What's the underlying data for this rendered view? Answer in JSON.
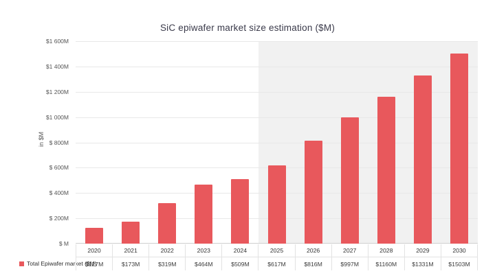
{
  "chart_data": {
    "type": "bar",
    "title": "SiC epiwafer market size estimation ($M)",
    "ylabel": "in $M",
    "categories": [
      "2020",
      "2021",
      "2022",
      "2023",
      "2024",
      "2025",
      "2026",
      "2027",
      "2028",
      "2029",
      "2030"
    ],
    "values": [
      127,
      173,
      319,
      464,
      509,
      617,
      816,
      997,
      1160,
      1331,
      1503
    ],
    "value_labels": [
      "$127M",
      "$173M",
      "$319M",
      "$464M",
      "$509M",
      "$617M",
      "$816M",
      "$997M",
      "$1160M",
      "$1331M",
      "$1503M"
    ],
    "ylim": [
      0,
      1600
    ],
    "y_tick_step": 200,
    "y_ticks": [
      "$ M",
      "$ 200M",
      "$ 400M",
      "$ 600M",
      "$ 800M",
      "$1 000M",
      "$1 200M",
      "$1 400M",
      "$1 600M"
    ],
    "grid": true,
    "legend_position": "bottom-left",
    "forecast_start_category": "2025",
    "bar_color": "#e8585c",
    "forecast_bg": "#f1f1f1"
  },
  "legend": {
    "label": "Total Epiwafer market ($M)"
  }
}
